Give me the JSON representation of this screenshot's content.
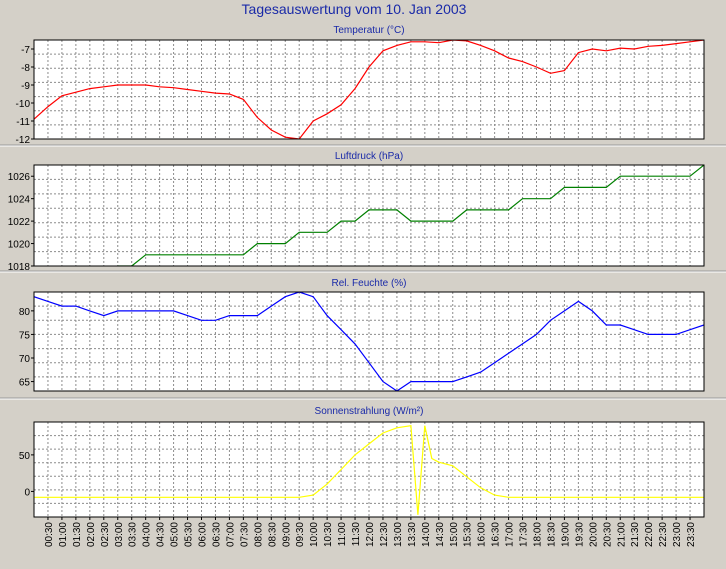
{
  "page": {
    "title": "Tagesauswertung vom 10. Jan 2003"
  },
  "colors": {
    "background": "#d4d0c8",
    "plot_bg": "#ffffff",
    "grid": "#8c8c8c",
    "title": "#1a2aa8",
    "temperature": "#ff0000",
    "pressure": "#008000",
    "humidity": "#0000ff",
    "radiation": "#ffff00"
  },
  "x_labels": [
    "00:30",
    "01:00",
    "01:30",
    "02:00",
    "02:30",
    "03:00",
    "03:30",
    "04:00",
    "04:30",
    "05:00",
    "05:30",
    "06:00",
    "06:30",
    "07:00",
    "07:30",
    "08:00",
    "08:30",
    "09:00",
    "09:30",
    "10:00",
    "10:30",
    "11:00",
    "11:30",
    "12:00",
    "12:30",
    "13:00",
    "13:30",
    "14:00",
    "14:30",
    "15:00",
    "15:30",
    "16:00",
    "16:30",
    "17:00",
    "17:30",
    "18:00",
    "18:30",
    "19:00",
    "19:30",
    "20:00",
    "20:30",
    "21:00",
    "21:30",
    "22:00",
    "22:30",
    "23:00",
    "23:30"
  ],
  "chart_data": [
    {
      "type": "line",
      "title": "Temperatur (°C)",
      "color": "#ff0000",
      "ylim": [
        -12,
        -6.5
      ],
      "yticks": [
        -12,
        -11,
        -10,
        -9,
        -8,
        -7
      ],
      "x": [
        "00:00",
        "00:30",
        "01:00",
        "01:30",
        "02:00",
        "02:30",
        "03:00",
        "03:30",
        "04:00",
        "04:30",
        "05:00",
        "05:30",
        "06:00",
        "06:30",
        "07:00",
        "07:30",
        "08:00",
        "08:30",
        "09:00",
        "09:30",
        "10:00",
        "10:30",
        "11:00",
        "11:30",
        "12:00",
        "12:30",
        "13:00",
        "13:30",
        "14:00",
        "14:30",
        "15:00",
        "15:30",
        "16:00",
        "16:30",
        "17:00",
        "17:30",
        "18:00",
        "18:30",
        "19:00",
        "19:30",
        "20:00",
        "20:30",
        "21:00",
        "21:30",
        "22:00",
        "22:30",
        "23:00",
        "23:30",
        "24:00"
      ],
      "values": [
        -10.9,
        -10.2,
        -9.6,
        -9.4,
        -9.2,
        -9.1,
        -9.0,
        -9.0,
        -9.0,
        -9.1,
        -9.15,
        -9.25,
        -9.35,
        -9.45,
        -9.5,
        -9.8,
        -10.8,
        -11.5,
        -11.9,
        -12.0,
        -11.0,
        -10.6,
        -10.1,
        -9.2,
        -8.0,
        -7.1,
        -6.8,
        -6.6,
        -6.6,
        -6.65,
        -6.5,
        -6.55,
        -6.8,
        -7.1,
        -7.5,
        -7.7,
        -8.0,
        -8.35,
        -8.2,
        -7.2,
        -7.0,
        -7.1,
        -6.95,
        -7.0,
        -6.85,
        -6.8,
        -6.7,
        -6.6,
        -6.5
      ]
    },
    {
      "type": "line",
      "title": "Luftdruck (hPa)",
      "color": "#008000",
      "ylim": [
        1018,
        1027
      ],
      "yticks": [
        1018,
        1020,
        1022,
        1024,
        1026
      ],
      "x": [
        "03:00",
        "03:30",
        "04:00",
        "04:30",
        "05:00",
        "05:30",
        "06:00",
        "06:30",
        "07:00",
        "07:30",
        "08:00",
        "08:30",
        "09:00",
        "09:30",
        "10:00",
        "10:30",
        "11:00",
        "11:30",
        "12:00",
        "12:30",
        "13:00",
        "13:30",
        "14:00",
        "14:30",
        "15:00",
        "15:30",
        "16:00",
        "16:30",
        "17:00",
        "17:30",
        "18:00",
        "18:30",
        "19:00",
        "19:30",
        "20:00",
        "20:30",
        "21:00",
        "21:30",
        "22:00",
        "22:30",
        "23:00",
        "23:30",
        "24:00"
      ],
      "values": [
        1018,
        1018,
        1019,
        1019,
        1019,
        1019,
        1019,
        1019,
        1019,
        1019,
        1020,
        1020,
        1020,
        1021,
        1021,
        1021,
        1022,
        1022,
        1023,
        1023,
        1023,
        1022,
        1022,
        1022,
        1022,
        1023,
        1023,
        1023,
        1023,
        1024,
        1024,
        1024,
        1025,
        1025,
        1025,
        1025,
        1026,
        1026,
        1026,
        1026,
        1026,
        1026,
        1027
      ]
    },
    {
      "type": "line",
      "title": "Rel. Feuchte (%)",
      "color": "#0000ff",
      "ylim": [
        63,
        84
      ],
      "yticks": [
        65,
        70,
        75,
        80
      ],
      "x": [
        "00:00",
        "00:30",
        "01:00",
        "01:30",
        "02:00",
        "02:30",
        "03:00",
        "03:30",
        "04:00",
        "04:30",
        "05:00",
        "05:30",
        "06:00",
        "06:30",
        "07:00",
        "07:30",
        "08:00",
        "08:30",
        "09:00",
        "09:30",
        "10:00",
        "10:30",
        "11:00",
        "11:30",
        "12:00",
        "12:30",
        "13:00",
        "13:30",
        "14:00",
        "14:30",
        "15:00",
        "15:30",
        "16:00",
        "16:30",
        "17:00",
        "17:30",
        "18:00",
        "18:30",
        "19:00",
        "19:30",
        "20:00",
        "20:30",
        "21:00",
        "21:30",
        "22:00",
        "22:30",
        "23:00",
        "23:30",
        "24:00"
      ],
      "values": [
        83,
        82,
        81,
        81,
        80,
        79,
        80,
        80,
        80,
        80,
        80,
        79,
        78,
        78,
        79,
        79,
        79,
        81,
        83,
        84,
        83,
        79,
        76,
        73,
        69,
        65,
        63,
        65,
        65,
        65,
        65,
        66,
        67,
        69,
        71,
        73,
        75,
        78,
        80,
        82,
        80,
        77,
        77,
        76,
        75,
        75,
        75,
        76,
        77
      ]
    },
    {
      "type": "line",
      "title": "Sonnenstrahlung (W/m²)",
      "color": "#ffff00",
      "ylim": [
        -35,
        95
      ],
      "yticks": [
        0,
        50
      ],
      "x": [
        "00:00",
        "00:30",
        "01:00",
        "01:30",
        "02:00",
        "02:30",
        "03:00",
        "03:30",
        "04:00",
        "04:30",
        "05:00",
        "05:30",
        "06:00",
        "06:30",
        "07:00",
        "07:30",
        "08:00",
        "08:30",
        "09:00",
        "09:30",
        "10:00",
        "10:30",
        "11:00",
        "11:30",
        "12:00",
        "12:30",
        "13:00",
        "13:30",
        "13:45",
        "14:00",
        "14:15",
        "14:30",
        "15:00",
        "15:30",
        "16:00",
        "16:30",
        "17:00",
        "17:30",
        "18:00",
        "18:30",
        "19:00",
        "19:30",
        "20:00",
        "20:30",
        "21:00",
        "21:30",
        "22:00",
        "22:30",
        "23:00",
        "23:30",
        "24:00"
      ],
      "values": [
        -8,
        -8,
        -8,
        -8,
        -8,
        -8,
        -8,
        -8,
        -8,
        -8,
        -8,
        -8,
        -8,
        -8,
        -8,
        -8,
        -8,
        -8,
        -8,
        -8,
        -5,
        10,
        30,
        50,
        65,
        80,
        87,
        90,
        -32,
        90,
        45,
        40,
        35,
        20,
        5,
        -5,
        -8,
        -8,
        -8,
        -8,
        -8,
        -8,
        -8,
        -8,
        -8,
        -8,
        -8,
        -8,
        -8,
        -8,
        -8
      ]
    }
  ]
}
